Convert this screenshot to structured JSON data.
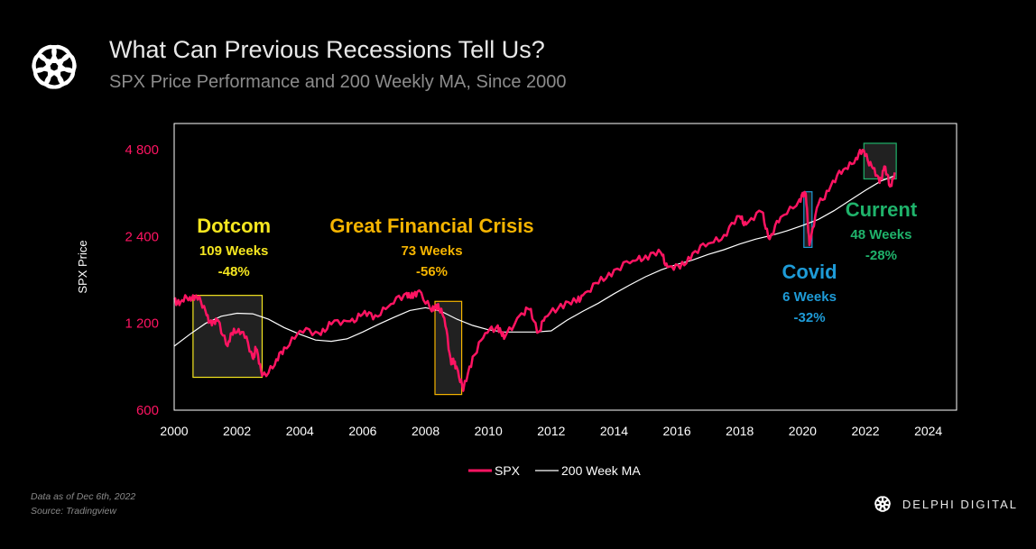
{
  "header": {
    "title": "What Can Previous Recessions Tell Us?",
    "subtitle": "SPX Price Performance and 200 Weekly MA, Since 2000"
  },
  "footer": {
    "data_note": "Data as of Dec 6th, 2022",
    "source": "Source: Tradingview",
    "brand_name": "DELPHI DIGITAL"
  },
  "colors": {
    "background": "#000000",
    "spx_line": "#ff1462",
    "ma_line": "#ffffff",
    "dotcom": "#f5e620",
    "gfc": "#f5b400",
    "covid": "#1e9bd7",
    "current": "#1fb36b"
  },
  "icons": {
    "logo": "delphi-knot-icon"
  },
  "chart_data": {
    "type": "line",
    "title": "What Can Previous Recessions Tell Us?",
    "subtitle": "SPX Price Performance and 200 Weekly MA, Since 2000",
    "xlabel": "",
    "ylabel": "SPX Price",
    "y_scale": "log",
    "xlim": [
      2000,
      2024.9
    ],
    "ylim": [
      600,
      6200
    ],
    "x_ticks": [
      2000,
      2002,
      2004,
      2006,
      2008,
      2010,
      2012,
      2014,
      2016,
      2018,
      2020,
      2022,
      2024
    ],
    "y_ticks": [
      600,
      1200,
      2400,
      4800
    ],
    "y_tick_labels": [
      "600",
      "1 200",
      "2 400",
      "4 800"
    ],
    "grid": false,
    "legend_position": "bottom-center",
    "legend": [
      "SPX",
      "200 Week MA"
    ],
    "series": [
      {
        "name": "SPX",
        "x": [
          2000.0,
          2000.2,
          2000.5,
          2000.7,
          2001.0,
          2001.2,
          2001.4,
          2001.7,
          2001.9,
          2002.2,
          2002.5,
          2002.6,
          2002.8,
          2003.2,
          2003.5,
          2004.0,
          2004.6,
          2005.0,
          2005.6,
          2006.0,
          2006.4,
          2006.9,
          2007.4,
          2007.6,
          2007.8,
          2008.2,
          2008.4,
          2008.6,
          2008.8,
          2008.9,
          2009.0,
          2009.2,
          2009.5,
          2009.9,
          2010.3,
          2010.5,
          2011.0,
          2011.3,
          2011.6,
          2011.8,
          2012.3,
          2012.8,
          2013.0,
          2013.5,
          2014.0,
          2014.6,
          2015.0,
          2015.5,
          2015.7,
          2016.1,
          2016.5,
          2017.0,
          2017.5,
          2018.0,
          2018.2,
          2018.7,
          2018.95,
          2019.3,
          2019.9,
          2020.1,
          2020.22,
          2020.5,
          2020.9,
          2021.3,
          2021.7,
          2021.95,
          2022.2,
          2022.45,
          2022.6,
          2022.78,
          2022.93
        ],
        "y": [
          1450,
          1420,
          1480,
          1500,
          1320,
          1180,
          1230,
          1000,
          1150,
          1120,
          910,
          980,
          790,
          860,
          990,
          1130,
          1110,
          1190,
          1220,
          1290,
          1280,
          1400,
          1530,
          1470,
          1560,
          1320,
          1400,
          1250,
          900,
          870,
          840,
          700,
          920,
          1110,
          1180,
          1060,
          1280,
          1340,
          1120,
          1260,
          1400,
          1420,
          1500,
          1650,
          1840,
          1980,
          2060,
          2100,
          1880,
          1860,
          2100,
          2270,
          2430,
          2820,
          2640,
          2920,
          2350,
          2800,
          3230,
          3380,
          2240,
          3100,
          3600,
          4100,
          4500,
          4770,
          4200,
          3680,
          4200,
          3580,
          4000
        ]
      },
      {
        "name": "200 Week MA",
        "x": [
          2000.0,
          2000.5,
          2001.0,
          2001.5,
          2002.0,
          2002.5,
          2003.0,
          2003.5,
          2004.0,
          2004.5,
          2005.0,
          2005.5,
          2006.0,
          2006.5,
          2007.0,
          2007.5,
          2008.0,
          2008.5,
          2009.0,
          2009.5,
          2010.0,
          2010.5,
          2011.0,
          2011.5,
          2012.0,
          2012.5,
          2013.0,
          2013.5,
          2014.0,
          2014.5,
          2015.0,
          2015.5,
          2016.0,
          2016.5,
          2017.0,
          2017.5,
          2018.0,
          2018.5,
          2019.0,
          2019.5,
          2020.0,
          2020.5,
          2021.0,
          2021.5,
          2022.0,
          2022.5,
          2022.93
        ],
        "y": [
          1000,
          1100,
          1200,
          1270,
          1300,
          1295,
          1240,
          1160,
          1100,
          1050,
          1040,
          1060,
          1120,
          1190,
          1260,
          1330,
          1360,
          1320,
          1240,
          1180,
          1140,
          1120,
          1120,
          1120,
          1130,
          1230,
          1320,
          1410,
          1520,
          1630,
          1740,
          1840,
          1920,
          1990,
          2080,
          2160,
          2260,
          2350,
          2420,
          2510,
          2620,
          2750,
          2950,
          3200,
          3470,
          3740,
          3900
        ]
      }
    ],
    "annotations": [
      {
        "name": "Dotcom",
        "duration": "109 Weeks",
        "drawdown": "-48%",
        "box_x": [
          2000.6,
          2002.8
        ],
        "box_y": [
          780,
          1500
        ],
        "color": "#f5e620"
      },
      {
        "name": "Great Financial Crisis",
        "duration": "73 Weeks",
        "drawdown": "-56%",
        "box_x": [
          2008.3,
          2009.15
        ],
        "box_y": [
          680,
          1430
        ],
        "color": "#f5b400"
      },
      {
        "name": "Covid",
        "duration": "6 Weeks",
        "drawdown": "-32%",
        "box_x": [
          2020.04,
          2020.3
        ],
        "box_y": [
          2200,
          3430
        ],
        "color": "#1e9bd7"
      },
      {
        "name": "Current",
        "duration": "48 Weeks",
        "drawdown": "-28%",
        "box_x": [
          2021.95,
          2022.98
        ],
        "box_y": [
          3800,
          5050
        ],
        "color": "#1fb36b"
      }
    ]
  }
}
